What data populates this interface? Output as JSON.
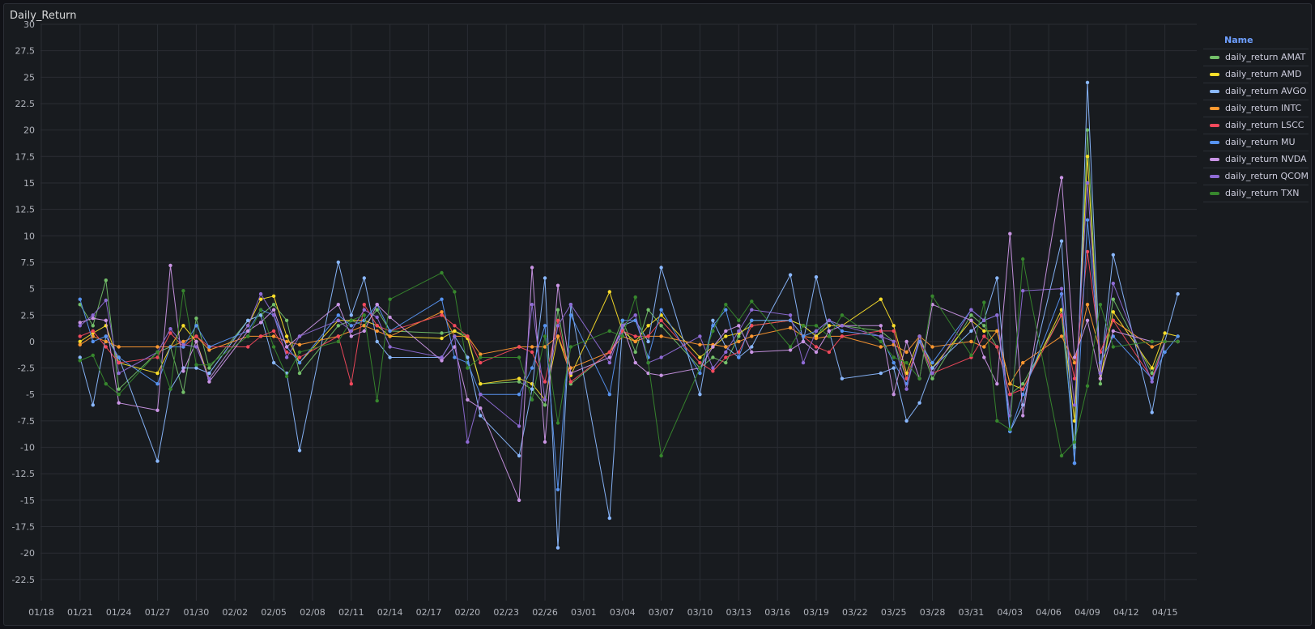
{
  "panel": {
    "title": "Daily_Return"
  },
  "legend": {
    "header": "Name"
  },
  "chart_data": {
    "type": "line",
    "title": "Daily_Return",
    "x_ticks": [
      "01/18",
      "01/21",
      "01/24",
      "01/27",
      "01/30",
      "02/02",
      "02/05",
      "02/08",
      "02/11",
      "02/14",
      "02/17",
      "02/20",
      "02/23",
      "02/26",
      "03/01",
      "03/04",
      "03/07",
      "03/10",
      "03/13",
      "03/16",
      "03/19",
      "03/22",
      "03/25",
      "03/28",
      "03/31",
      "04/03",
      "04/06",
      "04/09",
      "04/12",
      "04/15"
    ],
    "y_ticks": [
      "30",
      "27.5",
      "25",
      "22.5",
      "20",
      "17.5",
      "15",
      "12.5",
      "10",
      "7.5",
      "5",
      "2.5",
      "0",
      "-2.5",
      "-5",
      "-7.5",
      "-10",
      "-12.5",
      "-15",
      "-17.5",
      "-20",
      "-22.5"
    ],
    "ylim": [
      -24.5,
      30
    ],
    "dates": [
      "01/21",
      "01/22",
      "01/23",
      "01/24",
      "01/27",
      "01/28",
      "01/29",
      "01/30",
      "01/31",
      "02/03",
      "02/04",
      "02/05",
      "02/06",
      "02/07",
      "02/10",
      "02/11",
      "02/12",
      "02/13",
      "02/14",
      "02/18",
      "02/19",
      "02/20",
      "02/21",
      "02/24",
      "02/25",
      "02/26",
      "02/27",
      "02/28",
      "03/03",
      "03/04",
      "03/05",
      "03/06",
      "03/07",
      "03/10",
      "03/11",
      "03/12",
      "03/13",
      "03/14",
      "03/17",
      "03/18",
      "03/19",
      "03/20",
      "03/21",
      "03/24",
      "03/25",
      "03/26",
      "03/27",
      "03/28",
      "03/31",
      "04/01",
      "04/02",
      "04/03",
      "04/04",
      "04/07",
      "04/08",
      "04/09",
      "04/10",
      "04/11",
      "04/14",
      "04/15",
      "04/16"
    ],
    "series": [
      {
        "name": "daily_return AMAT",
        "color": "#73bf69",
        "values": [
          3.5,
          1.5,
          5.8,
          -4.5,
          -1.0,
          -0.5,
          -4.8,
          2.2,
          -2.5,
          2.0,
          2.5,
          3.5,
          2.0,
          -3.0,
          1.5,
          2.0,
          1.5,
          3.0,
          1.0,
          0.8,
          1.0,
          0.5,
          -4.0,
          -3.8,
          -4.5,
          -6.0,
          3.0,
          -4.0,
          -1.0,
          2.0,
          -1.0,
          3.0,
          1.5,
          -2.5,
          -1.5,
          -2.0,
          0.5,
          2.0,
          2.0,
          1.5,
          0.5,
          2.0,
          1.5,
          1.0,
          0.0,
          -3.5,
          0.0,
          -3.5,
          2.5,
          1.5,
          -0.5,
          -5.0,
          -4.0,
          2.5,
          -10.0,
          20.0,
          -4.0,
          4.0,
          -3.0,
          0.0,
          0.0
        ]
      },
      {
        "name": "daily_return AMD",
        "color": "#fade2a",
        "values": [
          0.0,
          0.8,
          1.5,
          -2.0,
          -3.0,
          -0.5,
          1.5,
          0.0,
          -3.5,
          1.5,
          4.0,
          4.3,
          0.5,
          -2.0,
          2.0,
          2.0,
          2.0,
          1.5,
          0.5,
          0.3,
          1.0,
          0.3,
          -4.0,
          -3.5,
          -4.0,
          -5.5,
          0.5,
          -3.2,
          4.7,
          1.0,
          0.0,
          1.5,
          2.5,
          -1.5,
          -0.5,
          0.5,
          0.8,
          1.5,
          2.0,
          1.5,
          0.5,
          1.5,
          1.5,
          4.0,
          1.5,
          -3.0,
          0.5,
          -2.5,
          2.0,
          1.0,
          1.0,
          -4.0,
          -4.5,
          3.0,
          -7.5,
          17.5,
          -3.5,
          2.8,
          -2.5,
          0.8,
          0.5
        ]
      },
      {
        "name": "daily_return AVGO",
        "color": "#8ab8ff",
        "values": [
          -1.5,
          -6.0,
          0.5,
          -1.5,
          -11.3,
          -4.5,
          -2.5,
          -2.5,
          -3.0,
          2.0,
          2.5,
          -2.0,
          -3.0,
          -10.3,
          7.5,
          2.5,
          6.0,
          0.0,
          -1.5,
          -1.5,
          0.5,
          -1.5,
          -7.0,
          -10.8,
          -4.5,
          6.0,
          -19.5,
          3.5,
          -16.7,
          1.5,
          2.0,
          0.0,
          7.0,
          -5.0,
          2.0,
          -0.5,
          -1.5,
          -0.5,
          6.3,
          0.0,
          6.1,
          1.0,
          -3.5,
          -3.0,
          -2.5,
          -7.5,
          -5.8,
          -2.5,
          1.0,
          2.0,
          6.0,
          -8.5,
          -6.0,
          9.5,
          -11.5,
          24.5,
          -3.0,
          8.2,
          -6.7,
          0.0,
          4.5
        ]
      },
      {
        "name": "daily_return INTC",
        "color": "#ff9830",
        "values": [
          -0.3,
          0.5,
          0.0,
          -0.5,
          -0.5,
          -0.5,
          0.0,
          0.5,
          -0.8,
          0.5,
          0.5,
          0.5,
          0.0,
          -0.3,
          0.5,
          1.0,
          1.5,
          1.0,
          0.5,
          2.8,
          0.5,
          0.5,
          -1.2,
          -0.5,
          -0.5,
          -0.5,
          0.5,
          -2.5,
          -1.0,
          0.5,
          0.0,
          0.5,
          0.5,
          -0.3,
          -0.3,
          -0.5,
          0.0,
          0.5,
          1.3,
          0.5,
          0.3,
          0.5,
          0.5,
          -0.5,
          -0.3,
          -1.0,
          0.5,
          -0.5,
          0.0,
          -0.5,
          1.0,
          -4.0,
          -2.0,
          0.5,
          -2.0,
          3.5,
          -1.0,
          2.0,
          -0.5,
          0.0,
          0.0
        ]
      },
      {
        "name": "daily_return LSCC",
        "color": "#f2495c",
        "values": [
          0.5,
          1.0,
          -0.5,
          -2.0,
          -1.5,
          0.8,
          -0.5,
          0.5,
          -0.5,
          -0.5,
          0.5,
          1.0,
          -1.0,
          -1.5,
          0.5,
          -4.0,
          3.5,
          1.5,
          1.0,
          2.5,
          1.5,
          0.5,
          -2.0,
          -0.5,
          -1.0,
          -3.8,
          2.0,
          -3.8,
          -1.0,
          1.0,
          0.5,
          0.5,
          2.0,
          -2.0,
          -2.8,
          -1.5,
          -1.0,
          1.5,
          2.0,
          0.5,
          -0.5,
          -1.0,
          0.5,
          1.0,
          1.0,
          -3.5,
          0.0,
          -3.0,
          -1.5,
          0.5,
          -0.5,
          -5.0,
          -4.5,
          2.5,
          -3.5,
          8.5,
          -1.0,
          2.0,
          -3.5,
          0.0,
          0.0
        ]
      },
      {
        "name": "daily_return MU",
        "color": "#5794f2",
        "values": [
          4.0,
          0.0,
          0.5,
          -1.5,
          -4.0,
          -0.5,
          -0.5,
          1.5,
          -0.5,
          1.0,
          3.0,
          2.5,
          -0.5,
          -2.0,
          2.5,
          1.5,
          2.0,
          3.5,
          1.0,
          4.0,
          -1.5,
          -2.0,
          -5.0,
          -5.0,
          -2.5,
          1.5,
          -14.0,
          2.5,
          -5.0,
          2.0,
          2.0,
          -1.5,
          3.0,
          -3.0,
          1.5,
          3.0,
          -1.5,
          2.0,
          2.0,
          0.5,
          1.0,
          2.0,
          1.0,
          0.5,
          -2.0,
          -4.0,
          0.0,
          -2.0,
          3.0,
          2.0,
          2.5,
          -8.5,
          -5.0,
          4.5,
          -11.5,
          11.5,
          -2.0,
          0.5,
          -3.5,
          -1.0,
          0.5
        ]
      },
      {
        "name": "daily_return NVDA",
        "color": "#ca95e5",
        "values": [
          1.8,
          2.2,
          2.0,
          -5.8,
          -6.5,
          7.2,
          -2.8,
          0.0,
          -3.8,
          1.0,
          1.8,
          3.0,
          -0.5,
          0.5,
          3.5,
          0.5,
          1.0,
          3.5,
          2.3,
          -1.8,
          -0.5,
          -5.5,
          -6.3,
          -15.0,
          7.0,
          -9.5,
          5.3,
          -3.0,
          -1.5,
          1.5,
          -2.0,
          -3.0,
          -3.2,
          -2.5,
          -0.5,
          1.0,
          1.5,
          -1.0,
          -0.8,
          0.0,
          -1.0,
          1.0,
          1.5,
          1.5,
          -5.0,
          0.0,
          -3.5,
          3.5,
          2.0,
          -1.5,
          -4.0,
          10.2,
          -7.0,
          15.5,
          -1.5,
          2.0,
          -3.5,
          1.0,
          0.0,
          0.0,
          0.0
        ]
      },
      {
        "name": "daily_return QCOM",
        "color": "#8f6bd6",
        "values": [
          1.5,
          2.5,
          3.9,
          -3.0,
          -1.0,
          1.2,
          -0.3,
          -0.5,
          -3.5,
          1.5,
          4.5,
          2.5,
          -1.5,
          0.5,
          2.0,
          1.0,
          3.0,
          2.3,
          -0.5,
          -1.5,
          0.5,
          -9.5,
          -5.0,
          -8.0,
          3.5,
          -5.5,
          1.5,
          3.5,
          -2.0,
          1.5,
          2.5,
          -2.0,
          -1.5,
          0.5,
          -2.5,
          -1.0,
          1.0,
          3.0,
          2.5,
          -2.0,
          1.0,
          2.0,
          1.5,
          0.5,
          0.0,
          -4.5,
          0.5,
          -3.0,
          3.0,
          2.0,
          2.5,
          -7.0,
          4.8,
          5.0,
          -6.0,
          15.0,
          -3.0,
          5.5,
          -3.8,
          0.0,
          0.0
        ]
      },
      {
        "name": "daily_return TXN",
        "color": "#37872d",
        "values": [
          -1.8,
          -1.3,
          -4.0,
          -5.0,
          -1.0,
          -4.5,
          4.8,
          -2.2,
          -2.2,
          0.5,
          3.0,
          -0.5,
          -3.3,
          -1.0,
          0.0,
          2.0,
          2.5,
          -5.6,
          4.0,
          6.5,
          4.7,
          -2.5,
          -1.5,
          -1.5,
          -5.5,
          0.5,
          -7.7,
          -0.5,
          1.0,
          0.5,
          4.2,
          -2.0,
          -10.8,
          -2.5,
          1.0,
          3.5,
          2.0,
          3.8,
          -0.5,
          1.5,
          1.5,
          0.5,
          2.5,
          0.0,
          -1.5,
          -2.0,
          -3.5,
          4.3,
          -1.3,
          3.7,
          -7.5,
          -8.3,
          7.8,
          -10.8,
          -9.5,
          -4.2,
          3.5,
          -0.5,
          0.0,
          0.0,
          0.0
        ]
      }
    ]
  }
}
